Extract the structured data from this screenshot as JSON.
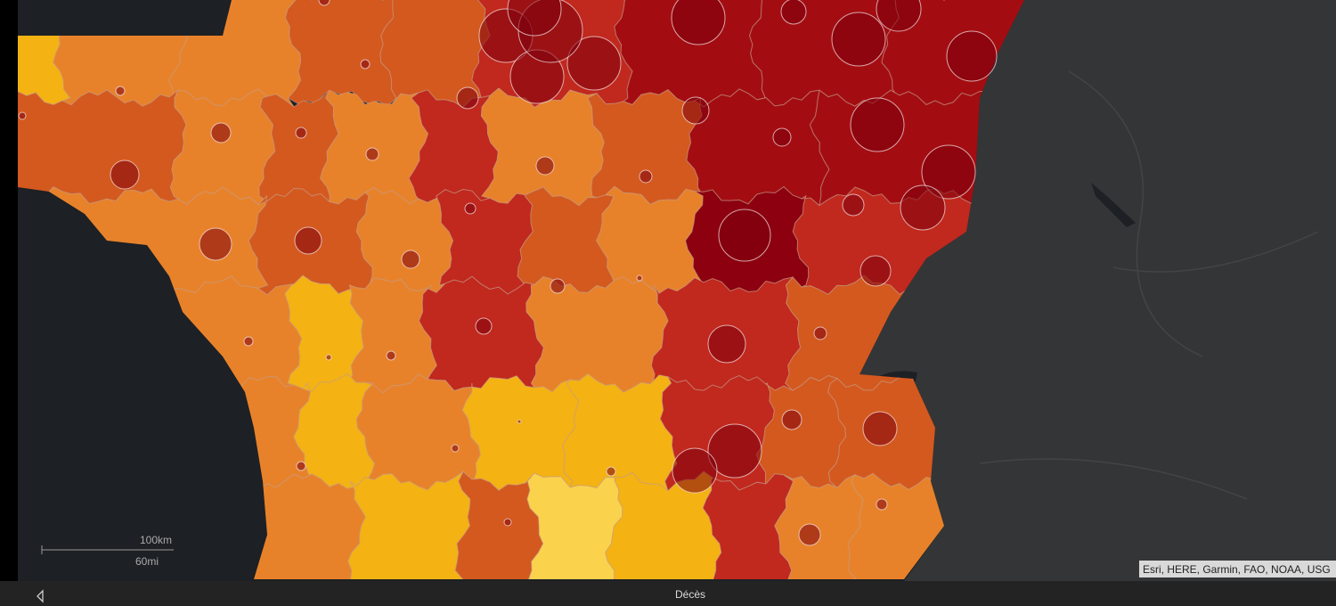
{
  "scale_bar": {
    "metric": "100km",
    "imperial": "60mi"
  },
  "attribution": "Esri, HERE, Garmin, FAO, NOAA, USG",
  "bottom_bar": {
    "title": "Décès"
  }
}
